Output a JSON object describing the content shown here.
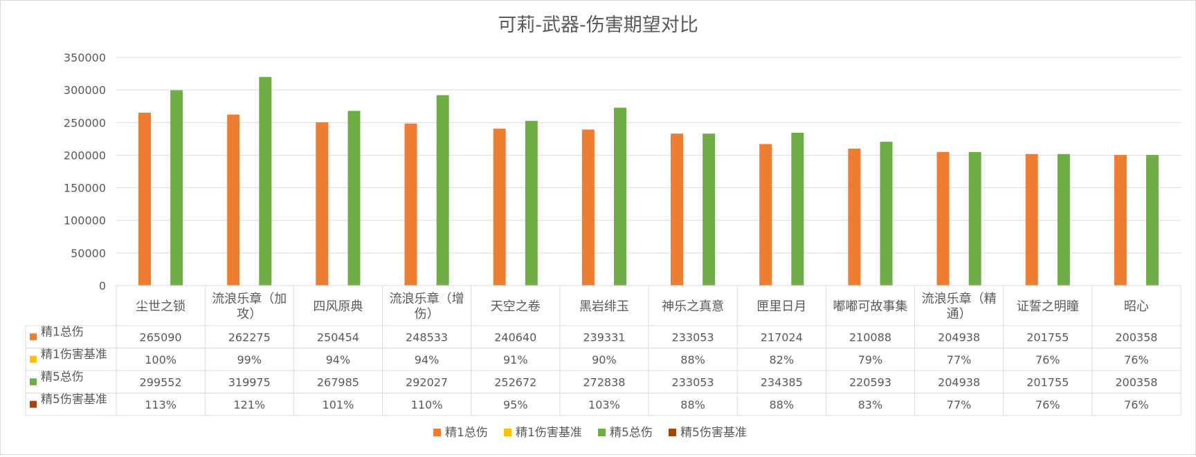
{
  "chart_data": {
    "type": "bar",
    "title": "可莉-武器-伤害期望对比",
    "xlabel": "",
    "ylabel": "",
    "ylim": [
      0,
      350000
    ],
    "yticks": [
      0,
      50000,
      100000,
      150000,
      200000,
      250000,
      300000,
      350000
    ],
    "y_tick_labels": [
      "0",
      "50000",
      "100000",
      "150000",
      "200000",
      "250000",
      "300000",
      "350000"
    ],
    "grid": true,
    "legend_position": "bottom",
    "categories": [
      "尘世之锁",
      "流浪乐章（加攻）",
      "四风原典",
      "流浪乐章（增伤）",
      "天空之卷",
      "黑岩绯玉",
      "神乐之真意",
      "匣里日月",
      "嘟嘟可故事集",
      "流浪乐章（精通）",
      "证誓之明瞳",
      "昭心"
    ],
    "category_lines": [
      [
        "尘世之锁"
      ],
      [
        "流浪乐章（加",
        "攻）"
      ],
      [
        "四风原典"
      ],
      [
        "流浪乐章（增",
        "伤）"
      ],
      [
        "天空之卷"
      ],
      [
        "黑岩绯玉"
      ],
      [
        "神乐之真意"
      ],
      [
        "匣里日月"
      ],
      [
        "嘟嘟可故事集"
      ],
      [
        "流浪乐章（精",
        "通）"
      ],
      [
        "证誓之明瞳"
      ],
      [
        "昭心"
      ]
    ],
    "series": [
      {
        "name": "精1总伤",
        "color": "#ed7d31",
        "plotted": true,
        "values": [
          265090,
          262275,
          250454,
          248533,
          240640,
          239331,
          233053,
          217024,
          210088,
          204938,
          201755,
          200358
        ],
        "labels": [
          "265090",
          "262275",
          "250454",
          "248533",
          "240640",
          "239331",
          "233053",
          "217024",
          "210088",
          "204938",
          "201755",
          "200358"
        ]
      },
      {
        "name": "精1伤害基准",
        "color": "#ffc000",
        "plotted": false,
        "values": [
          1.0,
          0.99,
          0.94,
          0.94,
          0.91,
          0.9,
          0.88,
          0.82,
          0.79,
          0.77,
          0.76,
          0.76
        ],
        "labels": [
          "100%",
          "99%",
          "94%",
          "94%",
          "91%",
          "90%",
          "88%",
          "82%",
          "79%",
          "77%",
          "76%",
          "76%"
        ]
      },
      {
        "name": "精5总伤",
        "color": "#70ad47",
        "plotted": true,
        "values": [
          299552,
          319975,
          267985,
          292027,
          252672,
          272838,
          233053,
          234385,
          220593,
          204938,
          201755,
          200358
        ],
        "labels": [
          "299552",
          "319975",
          "267985",
          "292027",
          "252672",
          "272838",
          "233053",
          "234385",
          "220593",
          "204938",
          "201755",
          "200358"
        ]
      },
      {
        "name": "精5伤害基准",
        "color": "#9e480e",
        "plotted": false,
        "values": [
          1.13,
          1.21,
          1.01,
          1.1,
          0.95,
          1.03,
          0.88,
          0.88,
          0.83,
          0.77,
          0.76,
          0.76
        ],
        "labels": [
          "113%",
          "121%",
          "101%",
          "110%",
          "95%",
          "103%",
          "88%",
          "88%",
          "83%",
          "77%",
          "76%",
          "76%"
        ]
      }
    ]
  }
}
